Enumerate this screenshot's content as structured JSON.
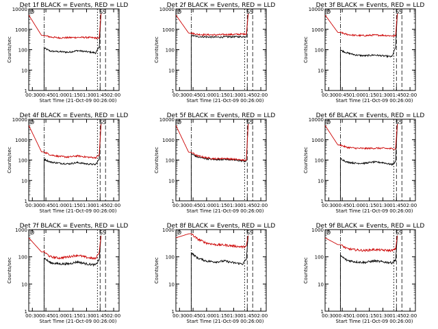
{
  "shared": {
    "ylabel": "Counts/sec",
    "xlabel": "Start Time (21-Oct-09 00:26:00)",
    "yticks": [
      "1",
      "10",
      "100",
      "1000",
      "10000"
    ],
    "xticks": [
      "00:30",
      "00:45",
      "01:00",
      "01:15",
      "01:30",
      "01:45",
      "02:00"
    ],
    "corner_mark": "D",
    "end_mark": "SS",
    "colors": {
      "events": "#000000",
      "lld": "#cc0000"
    }
  },
  "chart_data": [
    {
      "type": "line",
      "title": "Det 1f BLACK = Events, RED = LLD",
      "yscale": "log",
      "ylim": [
        1,
        10000
      ],
      "xlim": [
        "00:26",
        "02:06"
      ],
      "x": [
        "00:43",
        "00:50",
        "01:00",
        "01:10",
        "01:20",
        "01:30",
        "01:40",
        "01:44"
      ],
      "series": [
        {
          "name": "Events",
          "values": [
            120,
            85,
            80,
            75,
            90,
            80,
            70,
            130
          ]
        },
        {
          "name": "LLD",
          "values": [
            500,
            420,
            380,
            390,
            400,
            400,
            380,
            350
          ]
        }
      ]
    },
    {
      "type": "line",
      "title": "Det 2f BLACK = Events, RED = LLD",
      "yscale": "log",
      "ylim": [
        1,
        10000
      ],
      "xlim": [
        "00:26",
        "02:06"
      ],
      "x": [
        "00:43",
        "00:50",
        "01:00",
        "01:10",
        "01:20",
        "01:30",
        "01:40",
        "01:44"
      ],
      "series": [
        {
          "name": "Events",
          "values": [
            500,
            440,
            420,
            410,
            420,
            430,
            430,
            450
          ]
        },
        {
          "name": "LLD",
          "values": [
            650,
            560,
            540,
            530,
            550,
            560,
            580,
            600
          ]
        }
      ]
    },
    {
      "type": "line",
      "title": "Det 3f BLACK = Events, RED = LLD",
      "yscale": "log",
      "ylim": [
        1,
        10000
      ],
      "xlim": [
        "00:26",
        "02:06"
      ],
      "x": [
        "00:43",
        "00:50",
        "01:00",
        "01:10",
        "01:20",
        "01:30",
        "01:40",
        "01:44"
      ],
      "series": [
        {
          "name": "Events",
          "values": [
            95,
            70,
            55,
            50,
            55,
            50,
            45,
            130
          ]
        },
        {
          "name": "LLD",
          "values": [
            700,
            560,
            500,
            490,
            520,
            510,
            480,
            470
          ]
        }
      ]
    },
    {
      "type": "line",
      "title": "Det 4f BLACK = Events, RED = LLD",
      "yscale": "log",
      "ylim": [
        1,
        10000
      ],
      "xlim": [
        "00:26",
        "02:06"
      ],
      "x": [
        "00:43",
        "00:50",
        "01:00",
        "01:10",
        "01:20",
        "01:30",
        "01:40",
        "01:44"
      ],
      "series": [
        {
          "name": "Events",
          "values": [
            110,
            80,
            70,
            65,
            75,
            65,
            60,
            110
          ]
        },
        {
          "name": "LLD",
          "values": [
            250,
            180,
            150,
            140,
            160,
            140,
            130,
            180
          ]
        }
      ]
    },
    {
      "type": "line",
      "title": "Det 5f BLACK = Events, RED = LLD",
      "yscale": "log",
      "ylim": [
        1,
        10000
      ],
      "xlim": [
        "00:26",
        "02:06"
      ],
      "x": [
        "00:43",
        "00:50",
        "01:00",
        "01:10",
        "01:20",
        "01:30",
        "01:40",
        "01:44"
      ],
      "series": [
        {
          "name": "Events",
          "values": [
            200,
            140,
            115,
            105,
            110,
            100,
            90,
            85
          ]
        },
        {
          "name": "LLD",
          "values": [
            240,
            160,
            130,
            115,
            120,
            110,
            100,
            95
          ]
        }
      ]
    },
    {
      "type": "line",
      "title": "Det 6f BLACK = Events, RED = LLD",
      "yscale": "log",
      "ylim": [
        1,
        10000
      ],
      "xlim": [
        "00:26",
        "02:06"
      ],
      "x": [
        "00:43",
        "00:50",
        "01:00",
        "01:10",
        "01:20",
        "01:30",
        "01:40",
        "01:44"
      ],
      "series": [
        {
          "name": "Events",
          "values": [
            120,
            80,
            70,
            70,
            80,
            75,
            60,
            80
          ]
        },
        {
          "name": "LLD",
          "values": [
            550,
            420,
            380,
            370,
            380,
            380,
            360,
            350
          ]
        }
      ]
    },
    {
      "type": "line",
      "title": "Det 7f BLACK = Events, RED = LLD",
      "yscale": "log",
      "ylim": [
        1,
        1000
      ],
      "xlim": [
        "00:26",
        "02:06"
      ],
      "x": [
        "00:43",
        "00:50",
        "01:00",
        "01:10",
        "01:20",
        "01:30",
        "01:40",
        "01:44"
      ],
      "series": [
        {
          "name": "Events",
          "values": [
            90,
            60,
            55,
            55,
            65,
            55,
            50,
            80
          ]
        },
        {
          "name": "LLD",
          "values": [
            150,
            100,
            90,
            100,
            115,
            95,
            85,
            150
          ]
        }
      ]
    },
    {
      "type": "line",
      "title": "Det 8f BLACK = Events, RED = LLD",
      "yscale": "log",
      "ylim": [
        1,
        1000
      ],
      "xlim": [
        "00:26",
        "02:06"
      ],
      "x": [
        "00:43",
        "00:50",
        "01:00",
        "01:10",
        "01:20",
        "01:30",
        "01:40",
        "01:44"
      ],
      "series": [
        {
          "name": "Events",
          "values": [
            140,
            90,
            70,
            65,
            70,
            60,
            55,
            80
          ]
        },
        {
          "name": "LLD",
          "values": [
            700,
            450,
            320,
            280,
            270,
            250,
            230,
            240
          ]
        }
      ]
    },
    {
      "type": "line",
      "title": "Det 9f BLACK = Events, RED = LLD",
      "yscale": "log",
      "ylim": [
        1,
        1000
      ],
      "xlim": [
        "00:26",
        "02:06"
      ],
      "x": [
        "00:43",
        "00:50",
        "01:00",
        "01:10",
        "01:20",
        "01:30",
        "01:40",
        "01:44"
      ],
      "series": [
        {
          "name": "Events",
          "values": [
            110,
            75,
            65,
            62,
            70,
            65,
            60,
            75
          ]
        },
        {
          "name": "LLD",
          "values": [
            280,
            200,
            180,
            170,
            185,
            175,
            170,
            190
          ]
        }
      ]
    }
  ]
}
